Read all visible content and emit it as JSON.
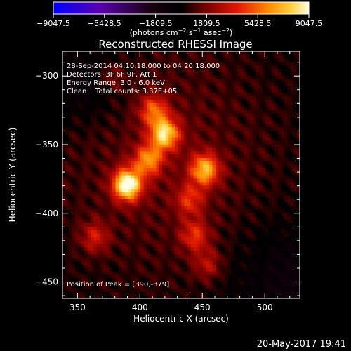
{
  "colorbar": {
    "ticks": [
      "−9047.5",
      "−5428.5",
      "−1809.5",
      "1809.5",
      "5428.5",
      "9047.5"
    ],
    "unit_main": "(photons cm",
    "unit_exp1": "−2",
    "unit_s": " s",
    "unit_exp2": "−1",
    "unit_asec": " asec",
    "unit_exp3": "−2",
    "unit_close": ")",
    "range": [
      -9047.5,
      9047.5
    ]
  },
  "footer_date": "20-May-2017 19:41",
  "chart_data": {
    "type": "heatmap",
    "title": "Reconstructed RHESSI Image",
    "xlabel": "Heliocentric X (arcsec)",
    "ylabel": "Heliocentric Y (arcsec)",
    "xlim": [
      338,
      528
    ],
    "ylim": [
      -462,
      -282
    ],
    "xticks": [
      350,
      400,
      450,
      500
    ],
    "yticks": [
      -300,
      -350,
      -400,
      -450
    ],
    "colormap": [
      "#0000ff",
      "#6a00a8",
      "#000000",
      "#b00000",
      "#ff3000",
      "#ffb000",
      "#ffffe0"
    ],
    "annotations": [
      "28-Sep-2014 04:10:18.000 to 04:20:18.000",
      "Detectors: 3F 6F 9F, Att 1",
      "Energy Range: 3.0 - 6.0 keV",
      "Clean    Total counts: 3.37E+05"
    ],
    "peak_label": "Position of Peak = [390,-379]",
    "sources": [
      {
        "x": 390,
        "y": -379,
        "peak": 9047.5
      },
      {
        "x": 420,
        "y": -342,
        "peak": 7200
      },
      {
        "x": 452,
        "y": -368,
        "peak": 6300
      },
      {
        "x": 407,
        "y": -361,
        "peak": 5200
      },
      {
        "x": 411,
        "y": -325,
        "peak": 4300
      },
      {
        "x": 440,
        "y": -390,
        "peak": 3200
      },
      {
        "x": 444,
        "y": -416,
        "peak": 3500
      },
      {
        "x": 364,
        "y": -417,
        "peak": 2900
      },
      {
        "x": 454,
        "y": -437,
        "peak": 2400
      },
      {
        "x": 378,
        "y": -300,
        "peak": 1800
      }
    ]
  }
}
